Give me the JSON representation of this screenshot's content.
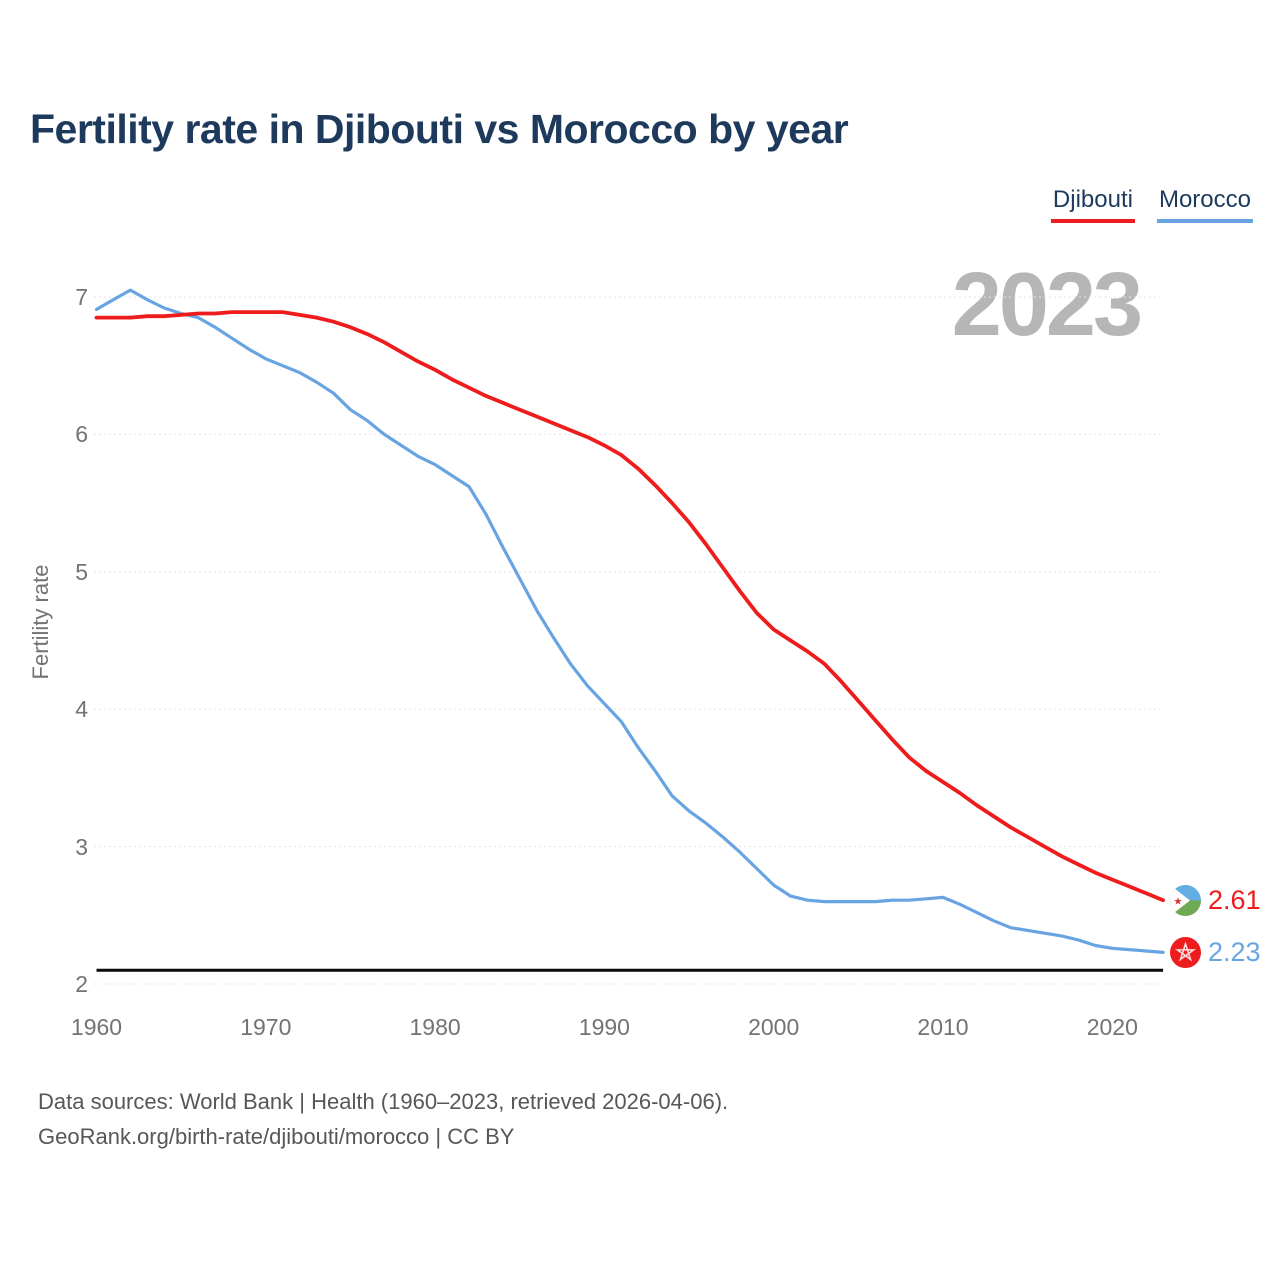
{
  "title": "Fertility rate in Djibouti vs Morocco by year",
  "watermark": "2023",
  "colors": {
    "djibouti_red": "#ee1c1c",
    "morocco_blue": "#68a4e2",
    "title_navy": "#1d3a5c",
    "axis_gray": "#737373",
    "watermark_gray": "#b6b6b6",
    "gridline": "#e4e4e4",
    "reference_black": "#0a0a0a"
  },
  "legend": [
    {
      "label": "Djibouti",
      "color": "#ee1c1c"
    },
    {
      "label": "Morocco",
      "color": "#68a4e2"
    }
  ],
  "y_axis": {
    "label": "Fertility rate",
    "ticks": [
      7,
      6,
      5,
      4,
      3,
      2
    ]
  },
  "x_axis": {
    "ticks": [
      1960,
      1970,
      1980,
      1990,
      2000,
      2010,
      2020
    ]
  },
  "end_labels": [
    {
      "value": "2.61",
      "color": "#ee1c1c",
      "flag": "djibouti-flag"
    },
    {
      "value": "2.23",
      "color": "#68a4e2",
      "flag": "morocco-flag"
    }
  ],
  "footer": {
    "line1": "Data sources: World Bank | Health (1960–2023, retrieved 2026-04-06).",
    "line2": "GeoRank.org/birth-rate/djibouti/morocco | CC BY"
  },
  "chart_data": {
    "type": "line",
    "title": "Fertility rate in Djibouti vs Morocco by year",
    "xlabel": "",
    "ylabel": "Fertility rate",
    "xlim": [
      1960,
      2023
    ],
    "ylim": [
      2,
      7.2
    ],
    "grid": true,
    "legend_position": "top-right",
    "reference_line": {
      "value": 2.1,
      "color": "#0a0a0a",
      "meaning": "replacement-level fertility"
    },
    "x": [
      1960,
      1961,
      1962,
      1963,
      1964,
      1965,
      1966,
      1967,
      1968,
      1969,
      1970,
      1971,
      1972,
      1973,
      1974,
      1975,
      1976,
      1977,
      1978,
      1979,
      1980,
      1981,
      1982,
      1983,
      1984,
      1985,
      1986,
      1987,
      1988,
      1989,
      1990,
      1991,
      1992,
      1993,
      1994,
      1995,
      1996,
      1997,
      1998,
      1999,
      2000,
      2001,
      2002,
      2003,
      2004,
      2005,
      2006,
      2007,
      2008,
      2009,
      2010,
      2011,
      2012,
      2013,
      2014,
      2015,
      2016,
      2017,
      2018,
      2019,
      2020,
      2021,
      2022,
      2023
    ],
    "series": [
      {
        "name": "Djibouti",
        "color": "#ee1c1c",
        "stroke_width": 3.8,
        "end_value": 2.61,
        "values": [
          6.85,
          6.85,
          6.85,
          6.86,
          6.86,
          6.87,
          6.88,
          6.88,
          6.89,
          6.89,
          6.89,
          6.89,
          6.87,
          6.85,
          6.82,
          6.78,
          6.73,
          6.67,
          6.6,
          6.53,
          6.47,
          6.4,
          6.34,
          6.28,
          6.23,
          6.18,
          6.13,
          6.08,
          6.03,
          5.98,
          5.92,
          5.85,
          5.75,
          5.63,
          5.5,
          5.36,
          5.2,
          5.03,
          4.86,
          4.7,
          4.58,
          4.5,
          4.42,
          4.33,
          4.2,
          4.06,
          3.92,
          3.78,
          3.65,
          3.55,
          3.47,
          3.39,
          3.3,
          3.22,
          3.14,
          3.07,
          3.0,
          2.93,
          2.87,
          2.81,
          2.76,
          2.71,
          2.66,
          2.61
        ]
      },
      {
        "name": "Morocco",
        "color": "#68a4e2",
        "stroke_width": 3.2,
        "end_value": 2.23,
        "values": [
          6.91,
          6.98,
          7.05,
          6.98,
          6.92,
          6.88,
          6.85,
          6.78,
          6.7,
          6.62,
          6.55,
          6.5,
          6.45,
          6.38,
          6.3,
          6.18,
          6.1,
          6.0,
          5.92,
          5.84,
          5.78,
          5.7,
          5.62,
          5.42,
          5.18,
          4.95,
          4.72,
          4.52,
          4.33,
          4.17,
          4.04,
          3.91,
          3.72,
          3.55,
          3.37,
          3.26,
          3.17,
          3.07,
          2.96,
          2.84,
          2.72,
          2.64,
          2.61,
          2.6,
          2.6,
          2.6,
          2.6,
          2.61,
          2.61,
          2.62,
          2.63,
          2.58,
          2.52,
          2.46,
          2.41,
          2.39,
          2.37,
          2.35,
          2.32,
          2.28,
          2.26,
          2.25,
          2.24,
          2.23
        ]
      }
    ]
  }
}
